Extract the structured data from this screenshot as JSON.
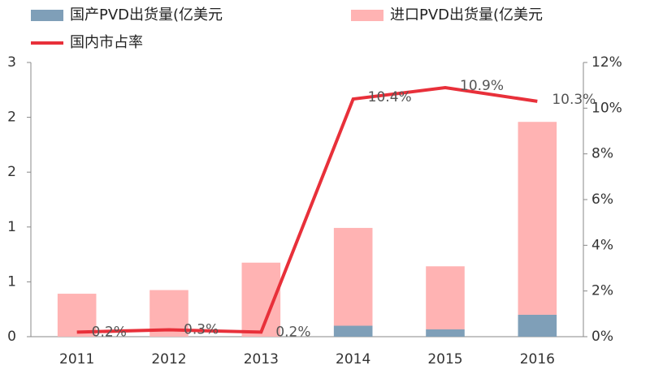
{
  "chart_data": {
    "type": "bar-line",
    "categories": [
      "2011",
      "2012",
      "2013",
      "2014",
      "2015",
      "2016"
    ],
    "series": [
      {
        "name": "国产PVD出货量(亿美元",
        "color": "#7f9fb8",
        "values": [
          0,
          0,
          0,
          0.12,
          0.08,
          0.24
        ]
      },
      {
        "name": "进口PVD出货量(亿美元",
        "color": "#ffb3b3",
        "values": [
          0.47,
          0.51,
          0.81,
          1.07,
          0.69,
          2.11
        ]
      },
      {
        "name": "国内市占率",
        "color": "#e8303a",
        "axis": "y2",
        "values": [
          0.2,
          0.3,
          0.2,
          10.4,
          10.9,
          10.3
        ],
        "value_labels": [
          "0.2%",
          "0.3%",
          "0.2%",
          "10.4%",
          "10.9%",
          "10.3%"
        ]
      }
    ],
    "ylim": [
      0,
      3
    ],
    "yticks": [
      {
        "value": 0,
        "label": "0"
      },
      {
        "value": 0.6,
        "label": "1"
      },
      {
        "value": 1.2,
        "label": "1"
      },
      {
        "value": 1.8,
        "label": "2"
      },
      {
        "value": 2.4,
        "label": "2"
      },
      {
        "value": 3.0,
        "label": "3"
      }
    ],
    "y2lim": [
      0,
      12
    ],
    "y2ticks": [
      {
        "value": 0,
        "label": "0%"
      },
      {
        "value": 2,
        "label": "2%"
      },
      {
        "value": 4,
        "label": "4%"
      },
      {
        "value": 6,
        "label": "6%"
      },
      {
        "value": 8,
        "label": "8%"
      },
      {
        "value": 10,
        "label": "10%"
      },
      {
        "value": 12,
        "label": "12%"
      }
    ]
  }
}
